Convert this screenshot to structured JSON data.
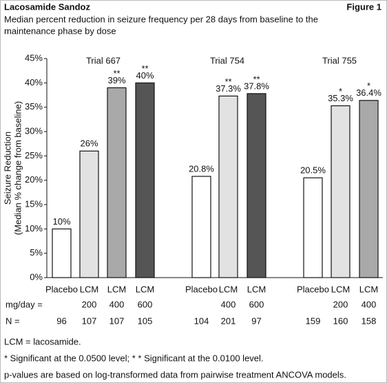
{
  "chart_data": {
    "type": "bar",
    "title": "Lacosamide Sandoz",
    "figure_label": "Figure 1",
    "subtitle": [
      "Median percent reduction in seizure frequency per 28 days from baseline to the",
      "maintenance phase by dose"
    ],
    "y_label": [
      "Seizure Reduction",
      "(Median % change from baseline)"
    ],
    "ylim": [
      0,
      45
    ],
    "yticks": [
      {
        "value": 0,
        "label": "0%"
      },
      {
        "value": 5,
        "label": "5%"
      },
      {
        "value": 10,
        "label": "10%"
      },
      {
        "value": 15,
        "label": "15%"
      },
      {
        "value": 20,
        "label": "20%"
      },
      {
        "value": 25,
        "label": "25%"
      },
      {
        "value": 30,
        "label": "30%"
      },
      {
        "value": 35,
        "label": "35%"
      },
      {
        "value": 40,
        "label": "40%"
      },
      {
        "value": 45,
        "label": "45%"
      }
    ],
    "groups": [
      {
        "name": "Trial 667",
        "categories": [
          "Placebo",
          "LCM",
          "LCM",
          "LCM"
        ],
        "values": [
          10,
          26,
          39,
          40
        ],
        "value_labels": [
          "10%",
          "26%",
          "39%",
          "40%"
        ],
        "significance": [
          null,
          null,
          "**",
          "**"
        ],
        "doses": [
          null,
          200,
          400,
          600
        ],
        "n": [
          96,
          107,
          107,
          105
        ],
        "colors": [
          "#ffffff",
          "#e2e2e2",
          "#a9a9a9",
          "#555555"
        ]
      },
      {
        "name": "Trial 754",
        "categories": [
          "Placebo",
          "LCM",
          "LCM"
        ],
        "values": [
          20.8,
          37.3,
          37.8
        ],
        "value_labels": [
          "20.8%",
          "37.3%",
          "37.8%"
        ],
        "significance": [
          null,
          "**",
          "**"
        ],
        "doses": [
          null,
          400,
          600
        ],
        "n": [
          104,
          201,
          97
        ],
        "colors": [
          "#ffffff",
          "#e2e2e2",
          "#555555"
        ]
      },
      {
        "name": "Trial 755",
        "categories": [
          "Placebo",
          "LCM",
          "LCM"
        ],
        "values": [
          20.5,
          35.3,
          36.4
        ],
        "value_labels": [
          "20.5%",
          "35.3%",
          "36.4%"
        ],
        "significance": [
          null,
          "*",
          "*"
        ],
        "doses": [
          null,
          200,
          400
        ],
        "n": [
          159,
          160,
          158
        ],
        "colors": [
          "#ffffff",
          "#e2e2e2",
          "#a9a9a9"
        ]
      }
    ],
    "dose_label": "mg/day =",
    "n_label": "N =",
    "footnotes": [
      "LCM = lacosamide.",
      "* Significant at the 0.0500 level;  * * Significant at the 0.0100 level.",
      "p-values are based on log-transformed data from pairwise treatment ANCOVA models."
    ]
  }
}
